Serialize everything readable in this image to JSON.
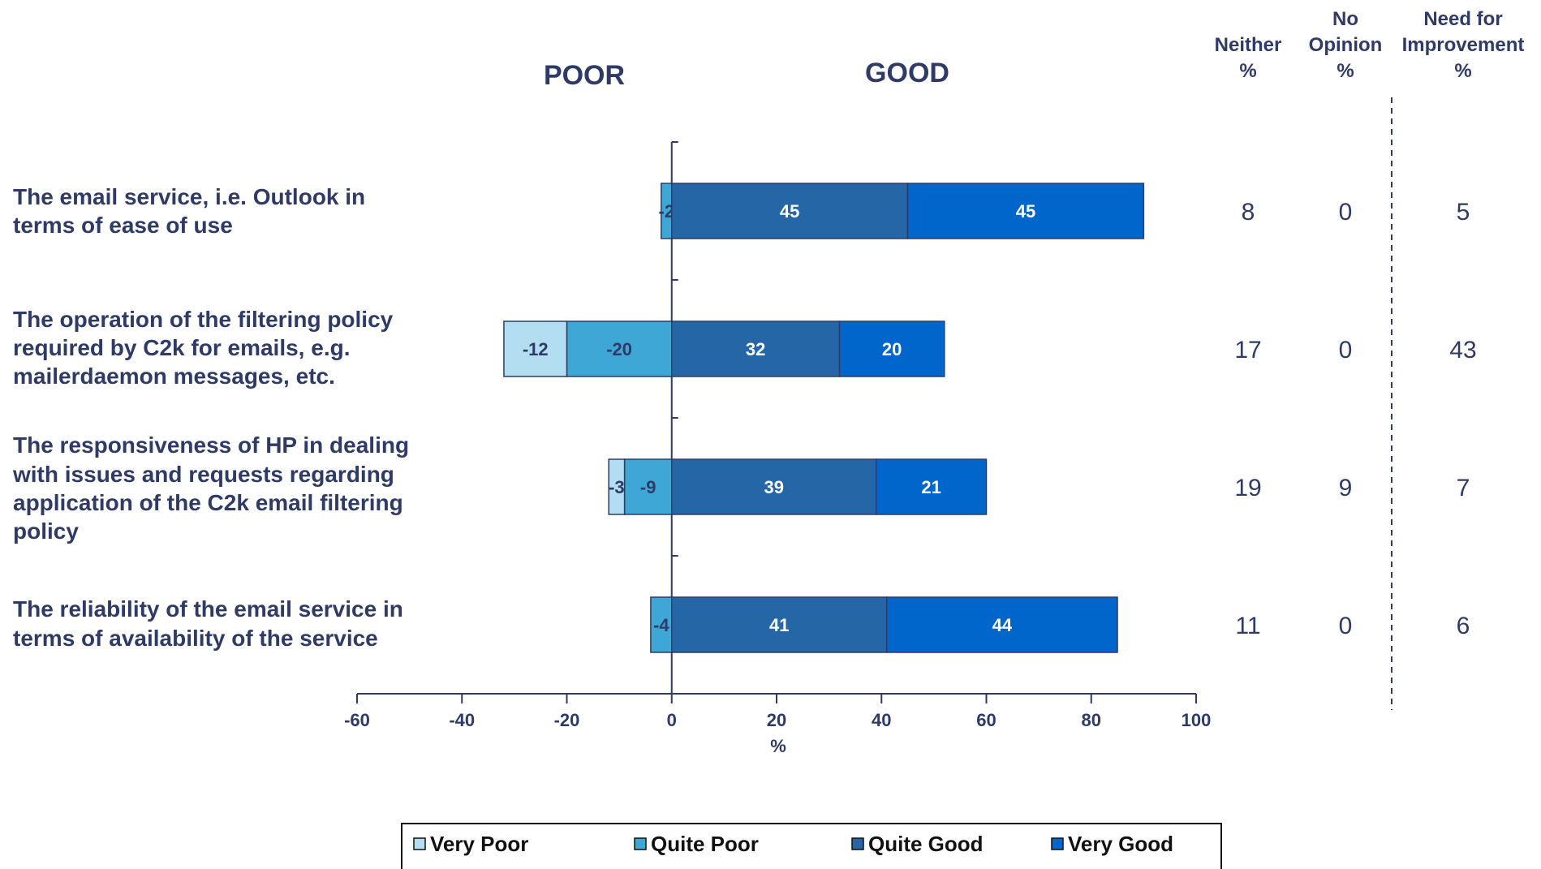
{
  "chart_data": {
    "type": "bar",
    "orientation": "horizontal",
    "stacked": "diverging",
    "side_titles": {
      "poor": "POOR",
      "good": "GOOD"
    },
    "xlabel": "%",
    "xlim": [
      -60,
      100
    ],
    "xticks": [
      -60,
      -40,
      -20,
      0,
      20,
      40,
      60,
      80,
      100
    ],
    "categories": [
      [
        "The email service, i.e. Outlook in",
        "terms of ease of use"
      ],
      [
        "The operation of the filtering policy",
        "required by C2k for emails, e.g.",
        "mailerdaemon messages, etc."
      ],
      [
        "The responsiveness of HP in dealing",
        "with issues and requests regarding",
        "application of the C2k email filtering",
        "policy"
      ],
      [
        "The reliability of the email service in",
        "terms of availability of the service"
      ]
    ],
    "series": [
      {
        "name": "Very Poor",
        "color": "#b3ddf0",
        "text_color": "#2f3b66",
        "values": [
          0,
          -12,
          -3,
          0
        ],
        "labels": [
          "",
          "-12",
          "-3",
          ""
        ]
      },
      {
        "name": "Quite Poor",
        "color": "#3ea7d6",
        "text_color": "#2f3b66",
        "values": [
          -2,
          -20,
          -9,
          -4
        ],
        "labels": [
          "-2",
          "-20",
          "-9",
          "-4"
        ]
      },
      {
        "name": "Quite Good",
        "color": "#2466a6",
        "text_color": "#ffffff",
        "values": [
          45,
          32,
          39,
          41
        ],
        "labels": [
          "45",
          "32",
          "39",
          "41"
        ]
      },
      {
        "name": "Very Good",
        "color": "#0066cc",
        "text_color": "#ffffff",
        "values": [
          45,
          20,
          21,
          44
        ],
        "labels": [
          "45",
          "20",
          "21",
          "44"
        ]
      }
    ],
    "extra_columns": [
      {
        "header": [
          "Neither",
          "%"
        ],
        "values": [
          "8",
          "17",
          "19",
          "11"
        ]
      },
      {
        "header": [
          "No",
          "Opinion",
          "%"
        ],
        "values": [
          "0",
          "0",
          "9",
          "0"
        ]
      },
      {
        "header": [
          "Need for",
          "Improvement",
          "%"
        ],
        "values": [
          "5",
          "43",
          "7",
          "6"
        ]
      }
    ],
    "legend": {
      "position": "bottom",
      "items": [
        "Very Poor",
        "Quite Poor",
        "Quite Good",
        "Very Good"
      ]
    },
    "axis_color": "#2f3b66",
    "grid": false
  }
}
